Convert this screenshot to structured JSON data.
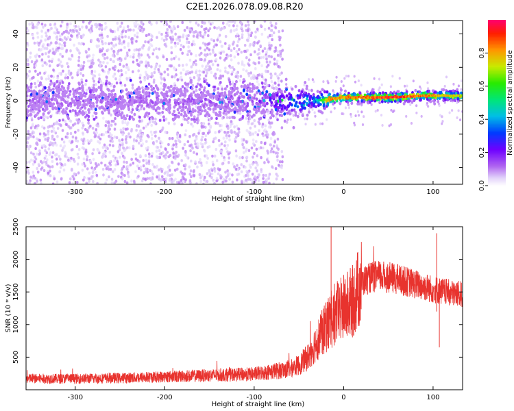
{
  "title": "C2E1.2026.078.09.08.R20",
  "chart_data": [
    {
      "type": "heatmap",
      "title": "C2E1.2026.078.09.08.R20",
      "xlabel": "Height of straight line (km)",
      "ylabel": "Frequency (Hz)",
      "xlim": [
        -355,
        133
      ],
      "ylim": [
        -50,
        48
      ],
      "xticks": [
        -300,
        -200,
        -100,
        0,
        100
      ],
      "xtick_labels": [
        "-300",
        "-200",
        "-100",
        "0",
        "100"
      ],
      "yticks": [
        -40,
        -20,
        0,
        20,
        40
      ],
      "ytick_labels": [
        "-40",
        "-20",
        "0",
        "20",
        "40"
      ],
      "colorbar": {
        "label": "Normalized spectral amplitude",
        "range": [
          0,
          1
        ],
        "ticks": [
          0.0,
          0.2,
          0.4,
          0.6,
          0.8
        ],
        "tick_labels": [
          "0.0",
          "0.2",
          "0.4",
          "0.6",
          "0.8"
        ]
      },
      "ridge": [
        {
          "x": -355,
          "freq": 0,
          "amp": 0.12
        },
        {
          "x": -100,
          "freq": 0,
          "amp": 0.15
        },
        {
          "x": -60,
          "freq": -1,
          "amp": 0.35
        },
        {
          "x": -30,
          "freq": 0,
          "amp": 0.45
        },
        {
          "x": -15,
          "freq": 1,
          "amp": 0.85
        },
        {
          "x": 0,
          "freq": 2,
          "amp": 0.85
        },
        {
          "x": 50,
          "freq": 2,
          "amp": 0.95
        },
        {
          "x": 90,
          "freq": 3,
          "amp": 0.9
        },
        {
          "x": 133,
          "freq": 3,
          "amp": 0.75
        }
      ]
    },
    {
      "type": "line",
      "xlabel": "Height of straight line (km)",
      "ylabel": "SNR (10 * v/v)",
      "xlim": [
        -355,
        133
      ],
      "ylim": [
        0,
        2500
      ],
      "xticks": [
        -300,
        -200,
        -100,
        0,
        100
      ],
      "xtick_labels": [
        "-300",
        "-200",
        "-100",
        "0",
        "100"
      ],
      "yticks": [
        500,
        1000,
        1500,
        2000,
        2500
      ],
      "ytick_labels": [
        "500",
        "1000",
        "1500",
        "2000",
        "2500"
      ],
      "color": "#e8332e",
      "series": [
        {
          "name": "SNR",
          "x": [
            -355,
            -300,
            -250,
            -200,
            -150,
            -100,
            -80,
            -60,
            -50,
            -40,
            -30,
            -20,
            -10,
            0,
            10,
            20,
            30,
            40,
            60,
            80,
            100,
            120,
            133
          ],
          "y": [
            170,
            170,
            180,
            200,
            220,
            240,
            280,
            320,
            380,
            500,
            750,
            950,
            1150,
            1250,
            1350,
            1650,
            1720,
            1740,
            1700,
            1620,
            1540,
            1480,
            1460
          ]
        }
      ]
    }
  ]
}
